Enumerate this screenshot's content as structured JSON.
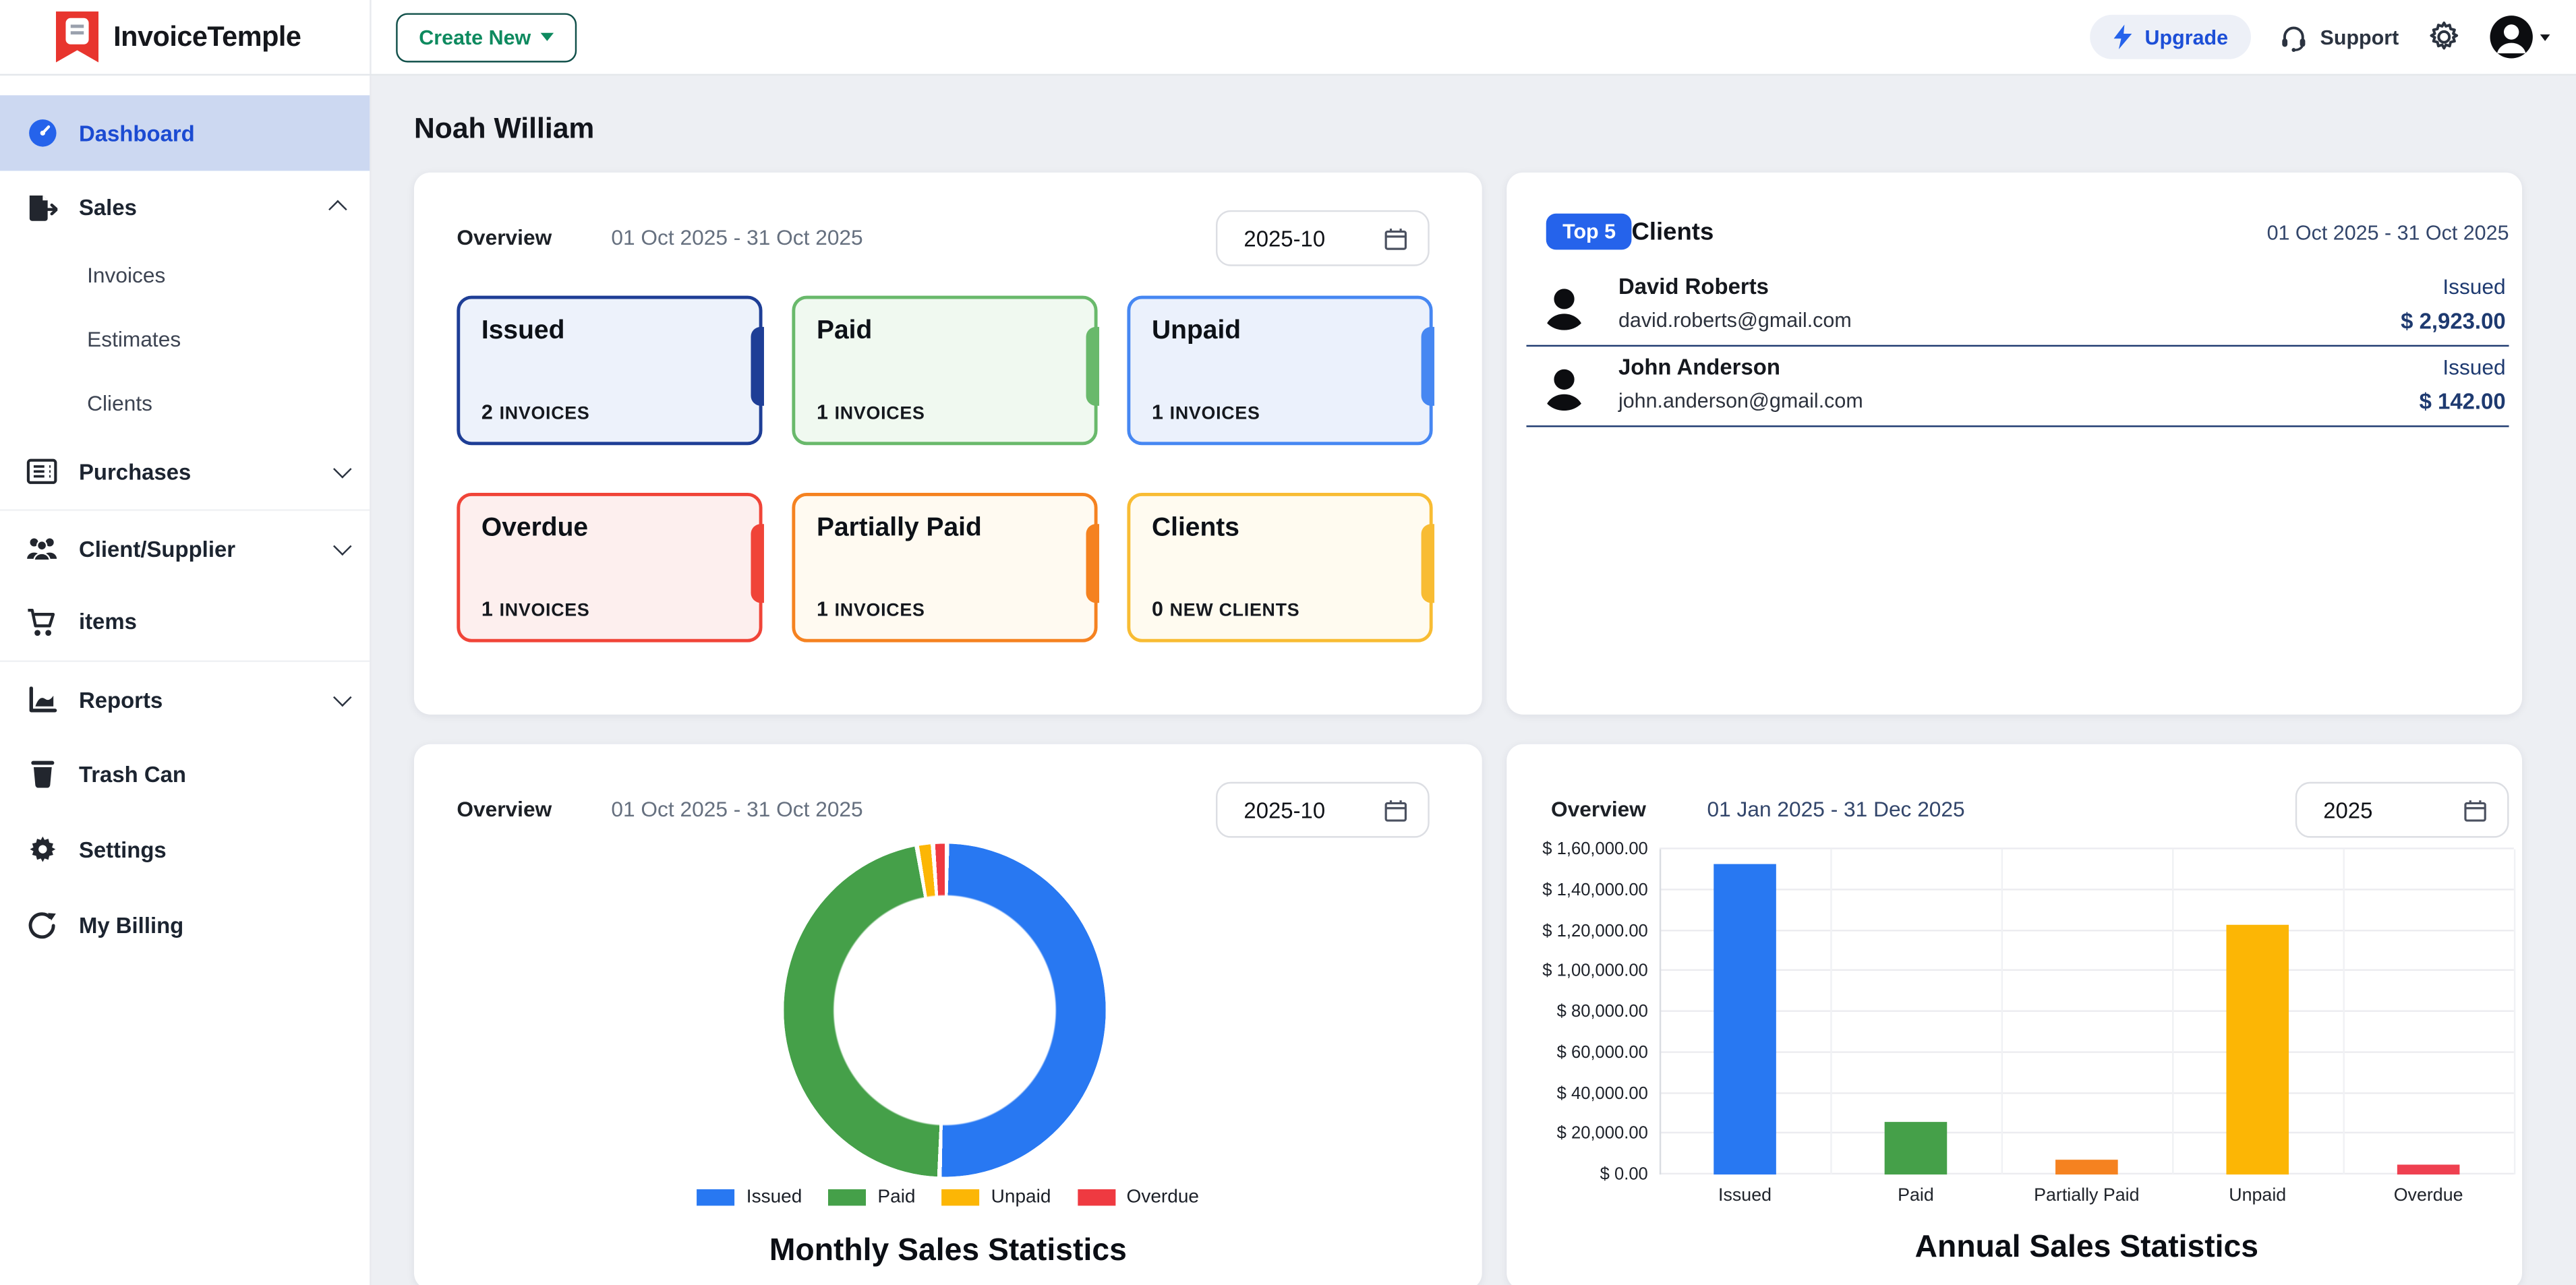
{
  "topbar": {
    "brand": "InvoiceTemple",
    "create_new": "Create New",
    "upgrade": "Upgrade",
    "support": "Support"
  },
  "page": {
    "user_name": "Noah William"
  },
  "sidebar": {
    "dashboard": "Dashboard",
    "sales": "Sales",
    "sales_children": [
      "Invoices",
      "Estimates",
      "Clients"
    ],
    "purchases": "Purchases",
    "client_supplier": "Client/Supplier",
    "items": "items",
    "reports": "Reports",
    "trash": "Trash Can",
    "settings": "Settings",
    "billing": "My Billing"
  },
  "colors": {
    "accent_blue": "#2563eb",
    "link_blue": "#1d4fd7",
    "create_green": "#0e8a5f",
    "create_border": "#11504a",
    "navy_text": "#1e3a70",
    "active_sidebar_bg": "#ccd8f1"
  },
  "overview_stats": {
    "label": "Overview",
    "date_range": "01 Oct 2025 - 31 Oct 2025",
    "picker_value": "2025-10",
    "cards": [
      {
        "title": "Issued",
        "count": "2",
        "unit": "INVOICES",
        "border": "#1e3e96",
        "bg": "#edf2fb"
      },
      {
        "title": "Paid",
        "count": "1",
        "unit": "INVOICES",
        "border": "#69b96b",
        "bg": "#f0f9f0"
      },
      {
        "title": "Unpaid",
        "count": "1",
        "unit": "INVOICES",
        "border": "#4687f2",
        "bg": "#ebf1fc"
      },
      {
        "title": "Overdue",
        "count": "1",
        "unit": "INVOICES",
        "border": "#f04438",
        "bg": "#fdefee"
      },
      {
        "title": "Partially Paid",
        "count": "1",
        "unit": "INVOICES",
        "border": "#f58220",
        "bg": "#fffaf1"
      },
      {
        "title": "Clients",
        "count": "0",
        "unit": "NEW CLIENTS",
        "border": "#f8bc33",
        "bg": "#fffbf0"
      }
    ]
  },
  "top_clients": {
    "badge": "Top 5",
    "title": "Clients",
    "date_range": "01 Oct 2025 - 31 Oct 2025",
    "rows": [
      {
        "name": "David Roberts",
        "email": "david.roberts@gmail.com",
        "status": "Issued",
        "amount": "$ 2,923.00"
      },
      {
        "name": "John Anderson",
        "email": "john.anderson@gmail.com",
        "status": "Issued",
        "amount": "$ 142.00"
      }
    ]
  },
  "monthly_card": {
    "label": "Overview",
    "date_range": "01 Oct 2025 - 31 Oct 2025",
    "picker_value": "2025-10",
    "title": "Monthly Sales Statistics"
  },
  "annual_card": {
    "label": "Overview",
    "date_range": "01 Jan 2025 - 31 Dec 2025",
    "picker_value": "2025",
    "title": "Annual Sales Statistics"
  },
  "chart_data": [
    {
      "type": "pie",
      "title": "Monthly Sales Statistics",
      "labels": [
        "Issued",
        "Paid",
        "Unpaid",
        "Overdue"
      ],
      "values": [
        50.3,
        46.7,
        1.6,
        1.4
      ],
      "colors": [
        "#2878f2",
        "#45a049",
        "#fcb605",
        "#ef3a41"
      ],
      "legend_position": "bottom",
      "donut": true
    },
    {
      "type": "bar",
      "title": "Annual Sales Statistics",
      "categories": [
        "Issued",
        "Paid",
        "Partially Paid",
        "Unpaid",
        "Overdue"
      ],
      "values": [
        153000,
        25500,
        7300,
        123000,
        4500
      ],
      "colors": [
        "#2878f2",
        "#45a049",
        "#f58220",
        "#fcb605",
        "#ef4050"
      ],
      "ylim": [
        0,
        160000
      ],
      "ytick_step": 20000,
      "ytick_labels": [
        "$ 0.00",
        "$ 20,000.00",
        "$ 40,000.00",
        "$ 60,000.00",
        "$ 80,000.00",
        "$ 1,00,000.00",
        "$ 1,20,000.00",
        "$ 1,40,000.00",
        "$ 1,60,000.00"
      ],
      "grid": true
    }
  ]
}
